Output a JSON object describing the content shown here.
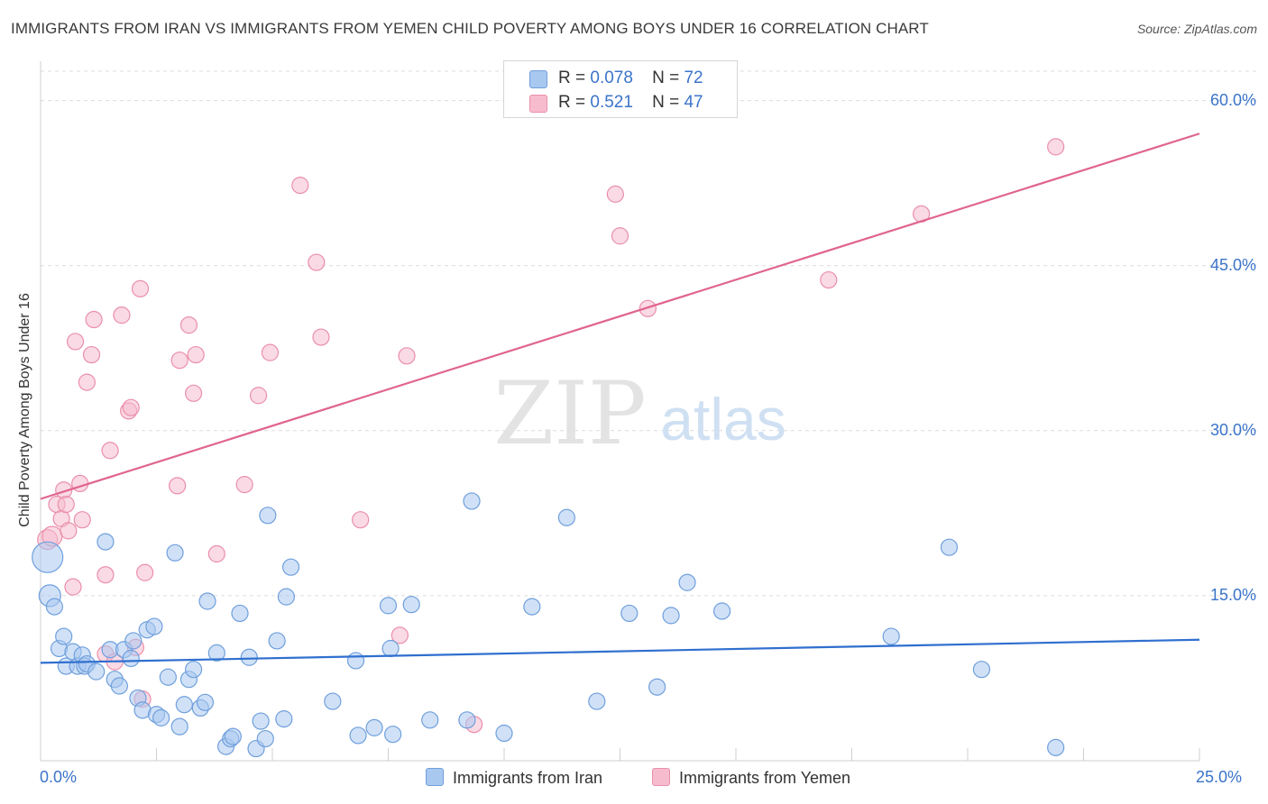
{
  "header": {
    "title": "IMMIGRANTS FROM IRAN VS IMMIGRANTS FROM YEMEN CHILD POVERTY AMONG BOYS UNDER 16 CORRELATION CHART",
    "source": "Source: ZipAtlas.com"
  },
  "watermark": {
    "zip": "ZIP",
    "atlas": "atlas"
  },
  "legend": {
    "iran": {
      "r_label": "R =",
      "r_value": "0.078",
      "n_label": "N =",
      "n_value": "72"
    },
    "yemen": {
      "r_label": "R =",
      "r_value": "0.521",
      "n_label": "N =",
      "n_value": "47"
    }
  },
  "colors": {
    "iran_fill": "#a9c8f0",
    "iran_stroke": "#6f9fdc",
    "iran_line": "#2f6fcf",
    "yemen_fill": "#f6bccd",
    "yemen_stroke": "#ea8fab",
    "yemen_line": "#e0648f",
    "accent_text": "#3b74c9",
    "grid": "#dcdcdc"
  },
  "chart_data": {
    "type": "scatter",
    "title": "IMMIGRANTS FROM IRAN VS IMMIGRANTS FROM YEMEN CHILD POVERTY AMONG BOYS UNDER 16 CORRELATION CHART",
    "xlabel": "",
    "ylabel": "Child Poverty Among Boys Under 16",
    "xlim": [
      0,
      25
    ],
    "ylim": [
      0,
      63
    ],
    "x_tick_labels": [
      "0.0%",
      "25.0%"
    ],
    "y_ticks": [
      15,
      30,
      45,
      60
    ],
    "y_tick_labels": [
      "15.0%",
      "30.0%",
      "45.0%",
      "60.0%"
    ],
    "grid": "horizontal dashed",
    "legend_position": "top-center",
    "series": [
      {
        "name": "Immigrants from Iran",
        "r": 0.078,
        "n": 72,
        "trend": {
          "x": [
            0,
            25
          ],
          "y": [
            8.9,
            11.0
          ]
        },
        "points": [
          [
            0.15,
            18.5
          ],
          [
            0.2,
            15.0
          ],
          [
            0.3,
            14.0
          ],
          [
            0.4,
            10.2
          ],
          [
            0.5,
            11.3
          ],
          [
            0.55,
            8.6
          ],
          [
            0.7,
            9.9
          ],
          [
            0.8,
            8.6
          ],
          [
            0.9,
            9.6
          ],
          [
            0.95,
            8.6
          ],
          [
            1.0,
            8.8
          ],
          [
            1.2,
            8.1
          ],
          [
            1.4,
            19.9
          ],
          [
            1.5,
            10.1
          ],
          [
            1.6,
            7.4
          ],
          [
            1.7,
            6.8
          ],
          [
            1.8,
            10.1
          ],
          [
            1.95,
            9.3
          ],
          [
            2.0,
            10.9
          ],
          [
            2.1,
            5.7
          ],
          [
            2.2,
            4.6
          ],
          [
            2.3,
            11.9
          ],
          [
            2.45,
            12.2
          ],
          [
            2.5,
            4.2
          ],
          [
            2.6,
            3.9
          ],
          [
            2.75,
            7.6
          ],
          [
            2.9,
            18.9
          ],
          [
            3.0,
            3.1
          ],
          [
            3.1,
            5.1
          ],
          [
            3.2,
            7.4
          ],
          [
            3.3,
            8.3
          ],
          [
            3.45,
            4.8
          ],
          [
            3.55,
            5.3
          ],
          [
            3.6,
            14.5
          ],
          [
            3.8,
            9.8
          ],
          [
            4.0,
            1.3
          ],
          [
            4.1,
            2.0
          ],
          [
            4.15,
            2.2
          ],
          [
            4.3,
            13.4
          ],
          [
            4.5,
            9.4
          ],
          [
            4.65,
            1.1
          ],
          [
            4.75,
            3.6
          ],
          [
            4.85,
            2.0
          ],
          [
            4.9,
            22.3
          ],
          [
            5.1,
            10.9
          ],
          [
            5.25,
            3.8
          ],
          [
            5.3,
            14.9
          ],
          [
            5.4,
            17.6
          ],
          [
            6.3,
            5.4
          ],
          [
            6.8,
            9.1
          ],
          [
            6.85,
            2.3
          ],
          [
            7.2,
            3.0
          ],
          [
            7.5,
            14.1
          ],
          [
            7.55,
            10.2
          ],
          [
            7.6,
            2.4
          ],
          [
            8.0,
            14.2
          ],
          [
            8.4,
            3.7
          ],
          [
            9.2,
            3.7
          ],
          [
            9.3,
            23.6
          ],
          [
            10.0,
            2.5
          ],
          [
            10.6,
            14.0
          ],
          [
            11.35,
            22.1
          ],
          [
            12.0,
            5.4
          ],
          [
            12.7,
            13.4
          ],
          [
            13.3,
            6.7
          ],
          [
            13.6,
            13.2
          ],
          [
            13.95,
            16.2
          ],
          [
            14.7,
            13.6
          ],
          [
            18.35,
            11.3
          ],
          [
            19.6,
            19.4
          ],
          [
            20.3,
            8.3
          ],
          [
            21.9,
            1.2
          ]
        ]
      },
      {
        "name": "Immigrants from Yemen",
        "r": 0.521,
        "n": 47,
        "trend": {
          "x": [
            0,
            25
          ],
          "y": [
            23.8,
            57.0
          ]
        },
        "points": [
          [
            0.15,
            20.1
          ],
          [
            0.25,
            20.4
          ],
          [
            0.35,
            23.3
          ],
          [
            0.45,
            22.0
          ],
          [
            0.5,
            24.6
          ],
          [
            0.55,
            23.3
          ],
          [
            0.6,
            20.9
          ],
          [
            0.7,
            15.8
          ],
          [
            0.75,
            38.1
          ],
          [
            0.85,
            25.2
          ],
          [
            0.9,
            21.9
          ],
          [
            1.0,
            34.4
          ],
          [
            1.1,
            36.9
          ],
          [
            1.15,
            40.1
          ],
          [
            1.4,
            9.7
          ],
          [
            1.4,
            16.9
          ],
          [
            1.5,
            28.2
          ],
          [
            1.6,
            9.0
          ],
          [
            1.75,
            40.5
          ],
          [
            1.9,
            31.8
          ],
          [
            1.95,
            32.1
          ],
          [
            2.05,
            10.3
          ],
          [
            2.15,
            42.9
          ],
          [
            2.2,
            5.6
          ],
          [
            2.25,
            17.1
          ],
          [
            2.95,
            25.0
          ],
          [
            3.0,
            36.4
          ],
          [
            3.2,
            39.6
          ],
          [
            3.3,
            33.4
          ],
          [
            3.35,
            36.9
          ],
          [
            3.8,
            18.8
          ],
          [
            4.4,
            25.1
          ],
          [
            4.7,
            33.2
          ],
          [
            4.95,
            37.1
          ],
          [
            5.6,
            52.3
          ],
          [
            5.95,
            45.3
          ],
          [
            6.05,
            38.5
          ],
          [
            6.9,
            21.9
          ],
          [
            7.75,
            11.4
          ],
          [
            7.9,
            36.8
          ],
          [
            9.35,
            3.3
          ],
          [
            12.4,
            51.5
          ],
          [
            12.5,
            47.7
          ],
          [
            13.1,
            41.1
          ],
          [
            17.0,
            43.7
          ],
          [
            19.0,
            49.7
          ],
          [
            21.9,
            55.8
          ]
        ]
      }
    ]
  },
  "bottom_legend": {
    "iran": "Immigrants from Iran",
    "yemen": "Immigrants from Yemen"
  }
}
